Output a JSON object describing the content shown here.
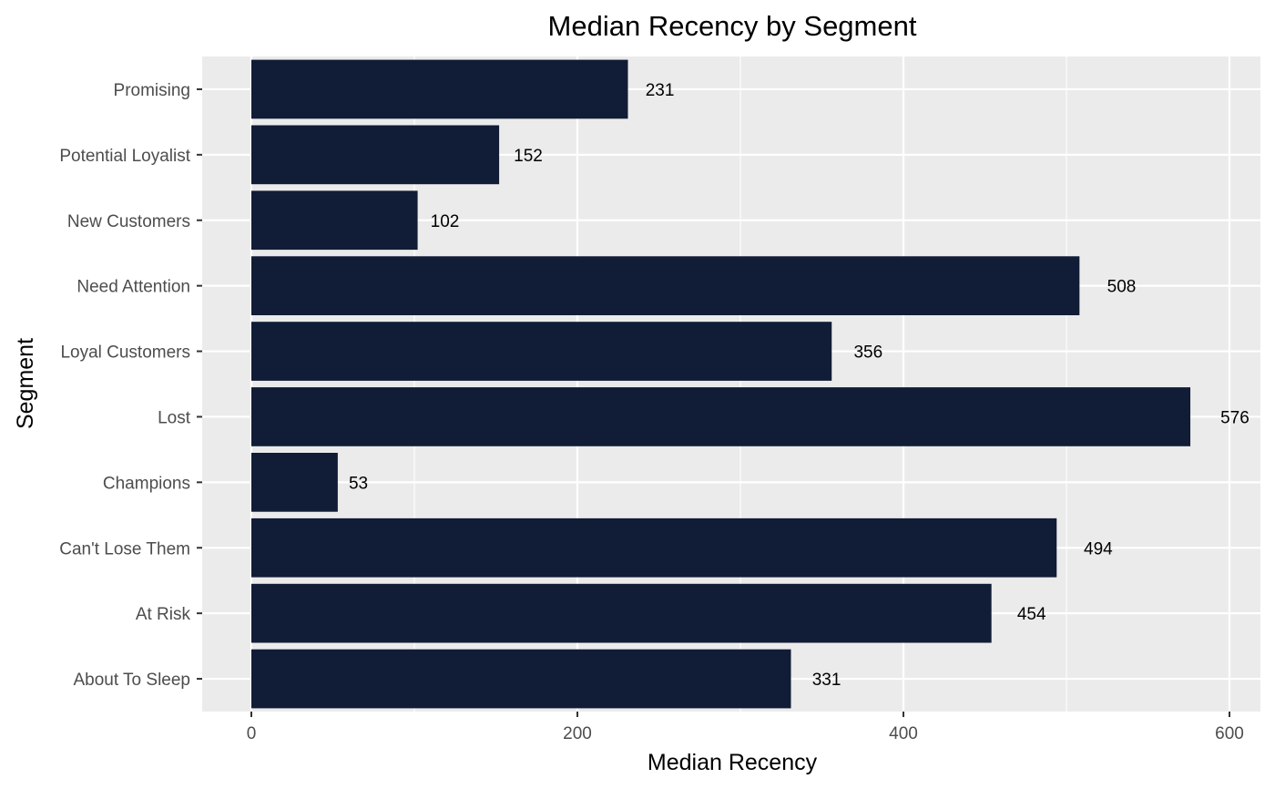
{
  "chart_data": {
    "type": "bar",
    "orientation": "horizontal",
    "title": "Median Recency  by Segment",
    "xlabel": "Median Recency",
    "ylabel": "Segment",
    "categories": [
      "Promising",
      "Potential Loyalist",
      "New Customers",
      "Need Attention",
      "Loyal Customers",
      "Lost",
      "Champions",
      "Can't Lose Them",
      "At Risk",
      "About To Sleep"
    ],
    "values": [
      231,
      152,
      102,
      508,
      356,
      576,
      53,
      494,
      454,
      331
    ],
    "data_labels": [
      "231",
      "152",
      "102",
      "508",
      "356",
      "576",
      "53",
      "494",
      "454",
      "331"
    ],
    "xlim": [
      0,
      620
    ],
    "x_ticks": [
      0,
      200,
      400,
      600
    ],
    "x_tick_labels": [
      "0",
      "200",
      "400",
      "600"
    ],
    "grid": true,
    "legend": "none",
    "colors": {
      "bar": "#111c36",
      "panel": "#ebebeb",
      "grid": "#ffffff"
    }
  }
}
